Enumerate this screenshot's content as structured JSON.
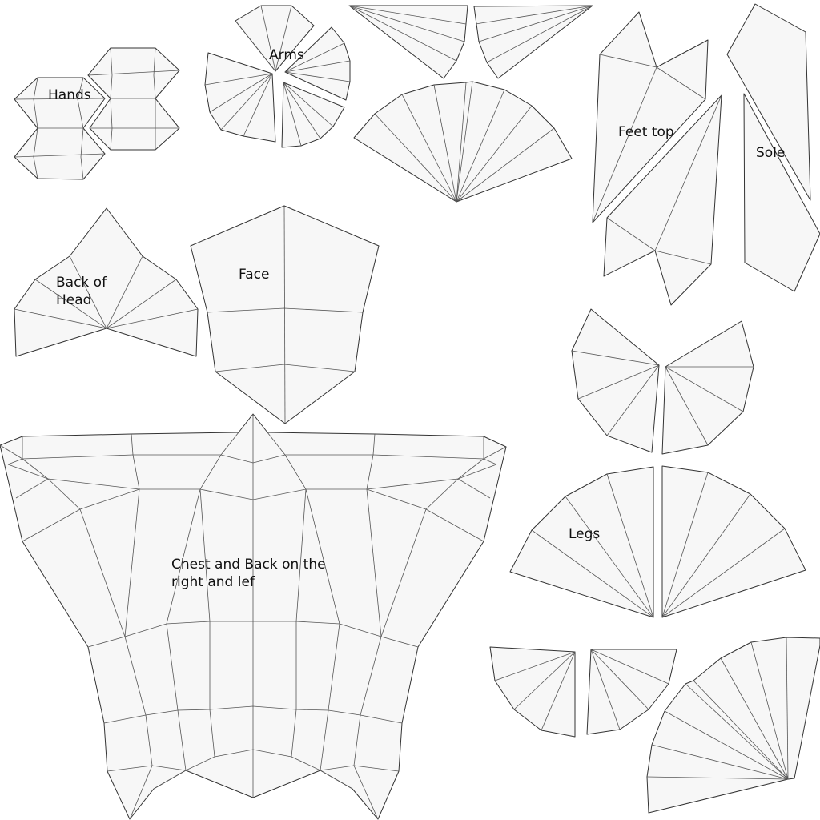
{
  "diagram": {
    "colors": {
      "background": "#ffffff",
      "island_fill": "#f7f7f7",
      "outline": "#333333",
      "inner_edge": "#555555",
      "text": "#111111"
    },
    "labels": {
      "hands": "Hands",
      "arms": "Arms",
      "feet_top": "Feet top",
      "sole": "Sole",
      "back_of_head": "Back of Head",
      "face": "Face",
      "legs": "Legs",
      "chest_back": "Chest and Back on the right and lef"
    }
  }
}
